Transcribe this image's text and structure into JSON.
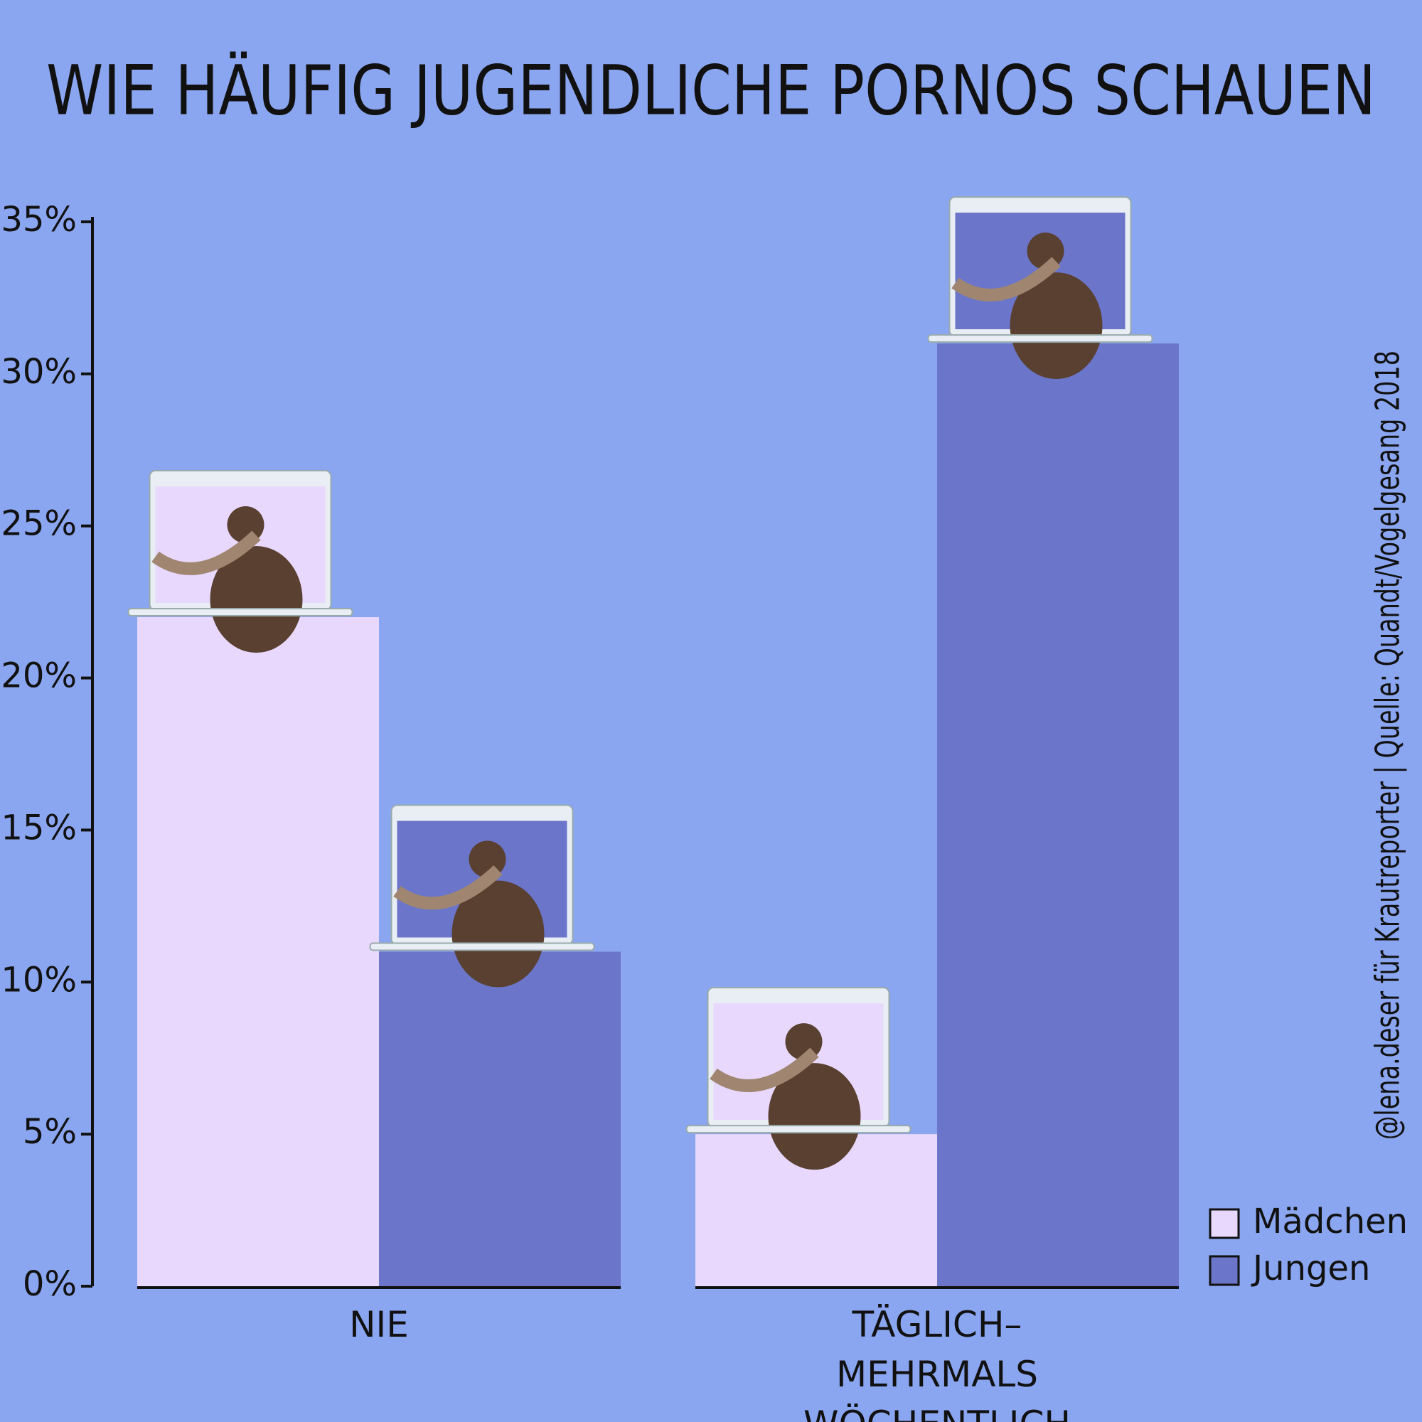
{
  "chart_data": {
    "type": "bar",
    "title": "WIE HÄUFIG JUGENDLICHE PORNOS SCHAUEN",
    "source": "@lena.deser für Krautreporter | Quelle: Quandt/Vogelgesang 2018",
    "categories": [
      "NIE",
      "TÄGLICH–MEHRMALS WÖCHENTLICH"
    ],
    "series": [
      {
        "name": "Mädchen",
        "color": "#e8d8fe",
        "values": [
          22,
          5
        ]
      },
      {
        "name": "Jungen",
        "color": "#6b75c9",
        "values": [
          11,
          31
        ]
      }
    ],
    "ylim": [
      0,
      35
    ],
    "yticks": [
      {
        "value": 0,
        "label": "0%"
      },
      {
        "value": 5,
        "label": "5%"
      },
      {
        "value": 10,
        "label": "10%"
      },
      {
        "value": 15,
        "label": "15%"
      },
      {
        "value": 20,
        "label": "20%"
      },
      {
        "value": 25,
        "label": "25%"
      },
      {
        "value": 30,
        "label": "30%"
      },
      {
        "value": 35,
        "label": "35%"
      }
    ],
    "legend": "bottom-right",
    "background": "#8ba6f0"
  }
}
